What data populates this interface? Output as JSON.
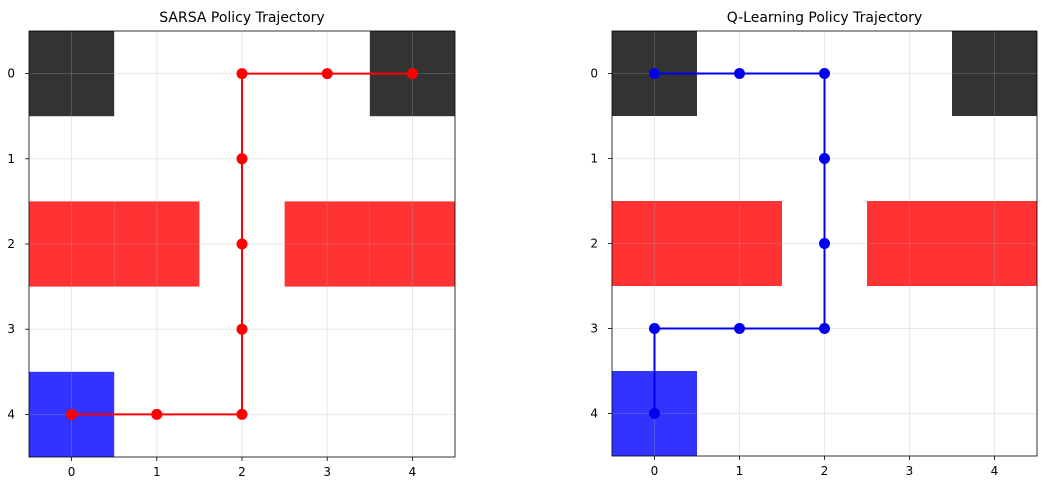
{
  "chart_data": [
    {
      "type": "grid-trajectory",
      "title": "SARSA Policy Trajectory",
      "grid_rows": 5,
      "grid_cols": 5,
      "x_ticks": [
        "0",
        "1",
        "2",
        "3",
        "4"
      ],
      "y_ticks": [
        "0",
        "1",
        "2",
        "3",
        "4"
      ],
      "xlim": [
        -0.5,
        4.5
      ],
      "ylim": [
        4.5,
        -0.5
      ],
      "grid": true,
      "cells": [
        {
          "row": 0,
          "col": 0,
          "color": "#333333"
        },
        {
          "row": 0,
          "col": 4,
          "color": "#333333"
        },
        {
          "row": 2,
          "col": 0,
          "color": "#ff3333"
        },
        {
          "row": 2,
          "col": 1,
          "color": "#ff3333"
        },
        {
          "row": 2,
          "col": 3,
          "color": "#ff3333"
        },
        {
          "row": 2,
          "col": 4,
          "color": "#ff3333"
        },
        {
          "row": 4,
          "col": 0,
          "color": "#3333ff"
        }
      ],
      "path_color": "#ff0000",
      "path": [
        {
          "x": 0,
          "y": 4
        },
        {
          "x": 1,
          "y": 4
        },
        {
          "x": 2,
          "y": 4
        },
        {
          "x": 2,
          "y": 3
        },
        {
          "x": 2,
          "y": 2
        },
        {
          "x": 2,
          "y": 1
        },
        {
          "x": 2,
          "y": 0
        },
        {
          "x": 3,
          "y": 0
        },
        {
          "x": 4,
          "y": 0
        }
      ]
    },
    {
      "type": "grid-trajectory",
      "title": "Q-Learning Policy Trajectory",
      "grid_rows": 5,
      "grid_cols": 5,
      "x_ticks": [
        "0",
        "1",
        "2",
        "3",
        "4"
      ],
      "y_ticks": [
        "0",
        "1",
        "2",
        "3",
        "4"
      ],
      "xlim": [
        -0.5,
        4.5
      ],
      "ylim": [
        4.5,
        -0.5
      ],
      "grid": true,
      "cells": [
        {
          "row": 0,
          "col": 0,
          "color": "#333333"
        },
        {
          "row": 0,
          "col": 4,
          "color": "#333333"
        },
        {
          "row": 2,
          "col": 0,
          "color": "#ff3333"
        },
        {
          "row": 2,
          "col": 1,
          "color": "#ff3333"
        },
        {
          "row": 2,
          "col": 3,
          "color": "#ff3333"
        },
        {
          "row": 2,
          "col": 4,
          "color": "#ff3333"
        },
        {
          "row": 4,
          "col": 0,
          "color": "#3333ff"
        }
      ],
      "path_color": "#0000ee",
      "path": [
        {
          "x": 0,
          "y": 4
        },
        {
          "x": 0,
          "y": 3
        },
        {
          "x": 1,
          "y": 3
        },
        {
          "x": 2,
          "y": 3
        },
        {
          "x": 2,
          "y": 2
        },
        {
          "x": 2,
          "y": 1
        },
        {
          "x": 2,
          "y": 0
        },
        {
          "x": 1,
          "y": 0
        },
        {
          "x": 0,
          "y": 0
        }
      ]
    }
  ]
}
